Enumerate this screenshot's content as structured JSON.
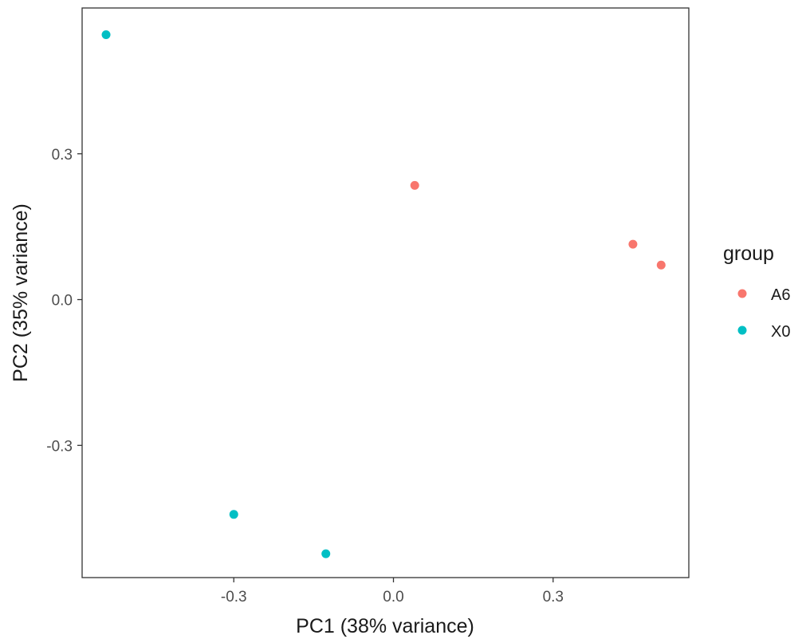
{
  "chart_data": {
    "type": "scatter",
    "xlabel": "PC1 (38% variance)",
    "ylabel": "PC2 (35% variance)",
    "xlim": [
      -0.585,
      0.555
    ],
    "ylim": [
      -0.572,
      0.6
    ],
    "x_ticks": [
      -0.3,
      0.0,
      0.3
    ],
    "x_tick_labels": [
      "-0.3",
      "0.0",
      "0.3"
    ],
    "y_ticks": [
      -0.3,
      0.0,
      0.3
    ],
    "y_tick_labels": [
      "-0.3",
      "0.0",
      "0.3"
    ],
    "grid": false,
    "legend": {
      "title": "group",
      "placement": "right"
    },
    "series": [
      {
        "name": "A6",
        "color": "#F8766D",
        "points": [
          {
            "x": 0.04,
            "y": 0.235
          },
          {
            "x": 0.45,
            "y": 0.114
          },
          {
            "x": 0.503,
            "y": 0.071
          }
        ]
      },
      {
        "name": "X0",
        "color": "#00BFC4",
        "points": [
          {
            "x": -0.54,
            "y": 0.545
          },
          {
            "x": -0.3,
            "y": -0.442
          },
          {
            "x": -0.127,
            "y": -0.523
          }
        ]
      }
    ]
  }
}
